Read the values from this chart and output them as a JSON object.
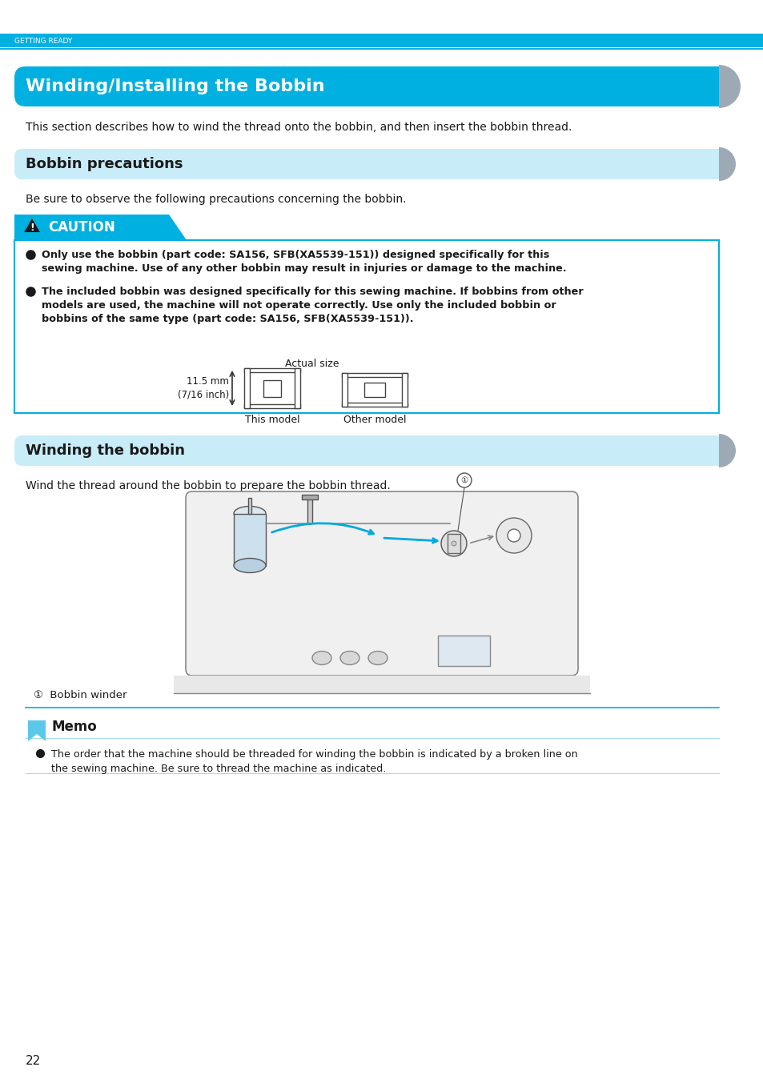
{
  "page_bg": "#ffffff",
  "header_bar_color": "#00b0e0",
  "header_text": "GETTING READY",
  "section1_title": "Winding/Installing the Bobbin",
  "section1_title_color": "#ffffff",
  "section1_bar_color": "#00b0e0",
  "section1_body": "This section describes how to wind the thread onto the bobbin, and then insert the bobbin thread.",
  "section2_title": "Bobbin precautions",
  "section2_title_color": "#1a1a1a",
  "section2_bar_color": "#c8ecf8",
  "caution_bar_color": "#00b0e0",
  "caution_text": "CAUTION",
  "caution_bullet1": "Only use the bobbin (part code: SA156, SFB(XA5539-151)) designed specifically for this\nsewing machine. Use of any other bobbin may result in injuries or damage to the machine.",
  "caution_bullet2": "The included bobbin was designed specifically for this sewing machine. If bobbins from other\nmodels are used, the machine will not operate correctly. Use only the included bobbin or\nbobbins of the same type (part code: SA156, SFB(XA5539-151)).",
  "actual_size_label": "Actual size",
  "bobbin_size_label": "11.5 mm\n(7/16 inch)",
  "this_model_label": "This model",
  "other_model_label": "Other model",
  "section3_title": "Winding the bobbin",
  "section3_title_color": "#1a1a1a",
  "section3_bar_color": "#c8ecf8",
  "section3_body": "Wind the thread around the bobbin to prepare the bobbin thread.",
  "bobbin_winder_label": "①  Bobbin winder",
  "memo_title": "Memo",
  "memo_bullet": "The order that the machine should be threaded for winding the bobbin is indicated by a broken line on\nthe sewing machine. Be sure to thread the machine as indicated.",
  "page_number": "22",
  "memo_line_color": "#00b0e0",
  "caution_box_border": "#00b0e0",
  "memo_icon_color": "#5bc8e8",
  "tab_color": "#9daab5"
}
